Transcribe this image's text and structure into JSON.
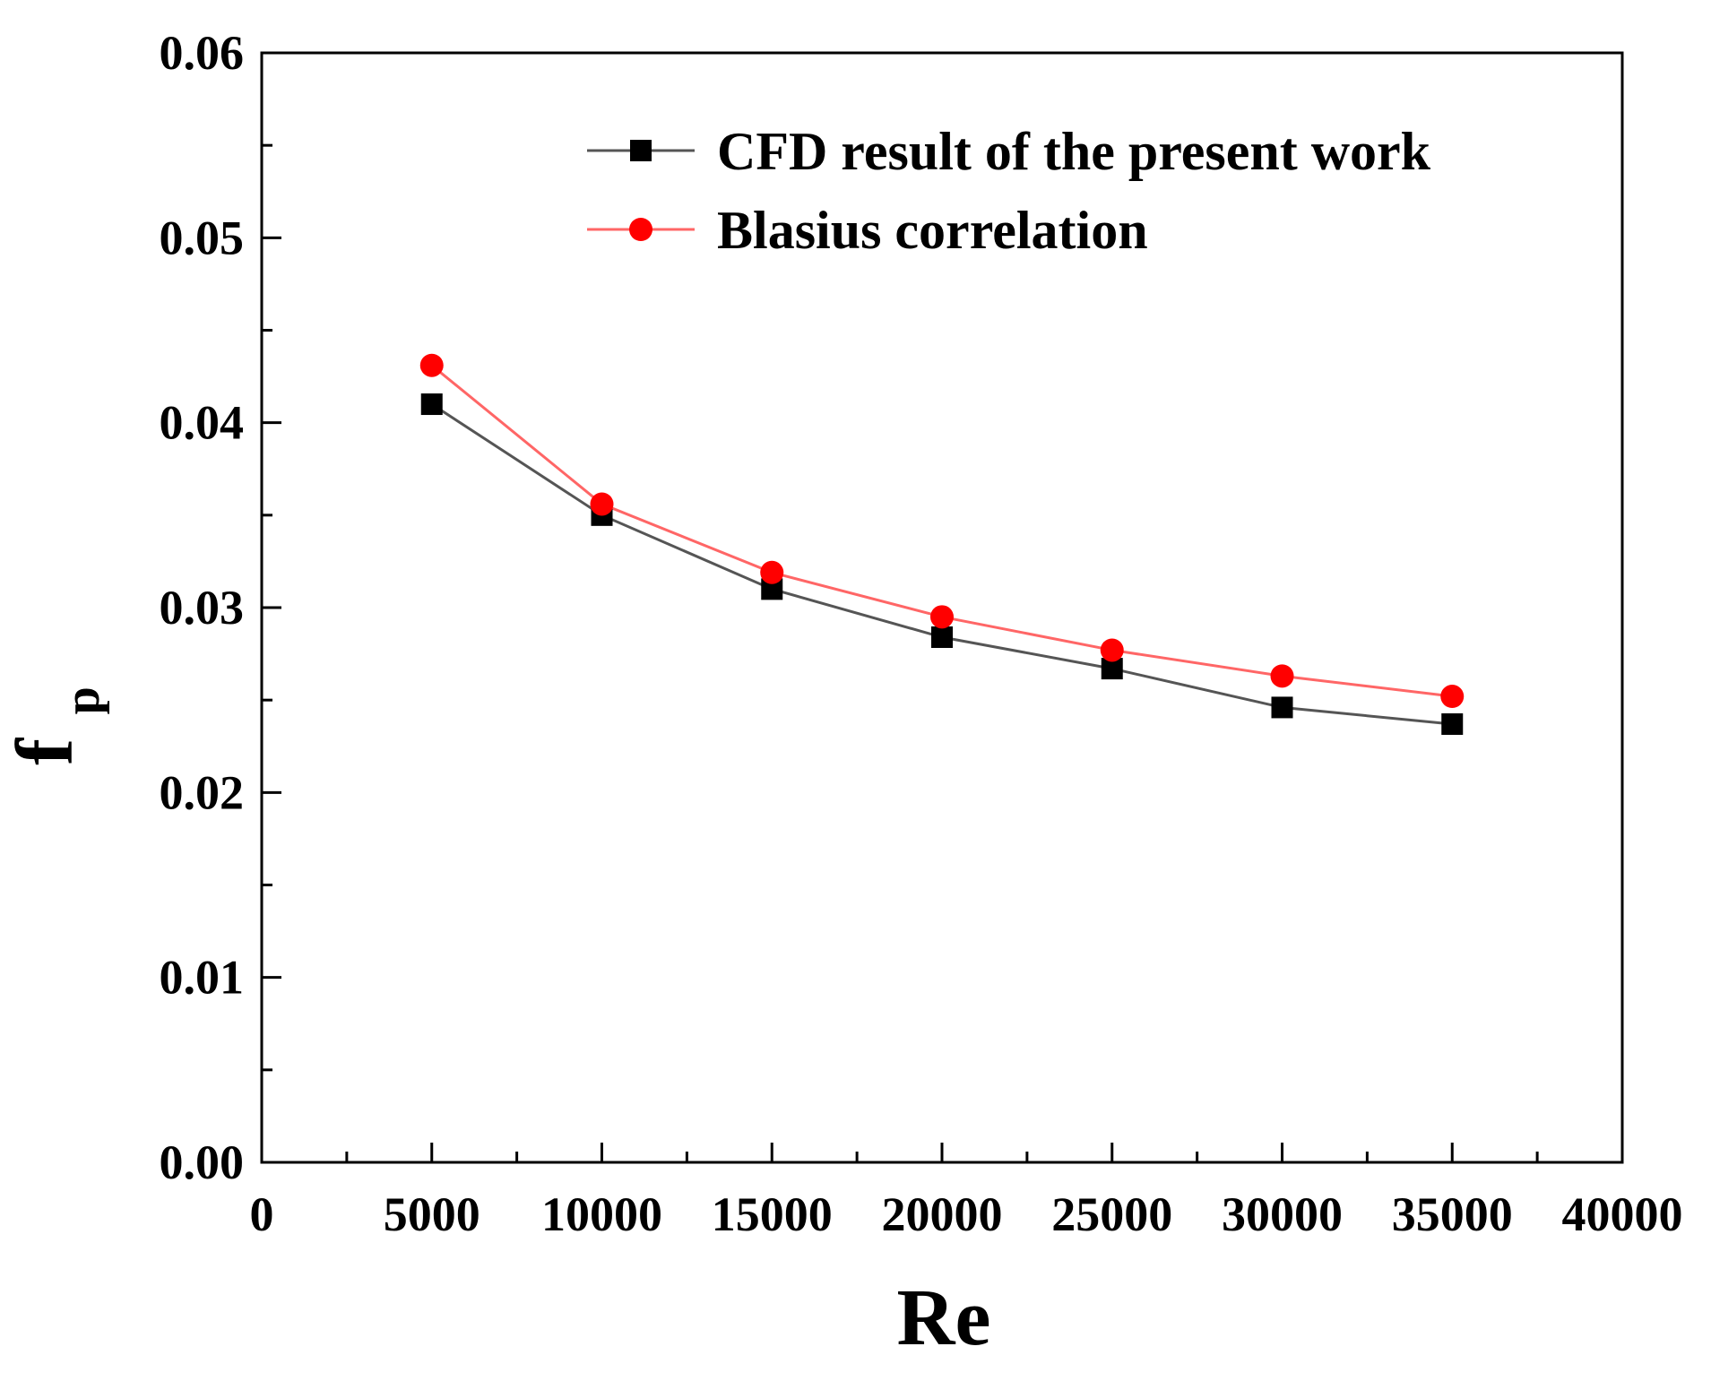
{
  "chart_data": {
    "type": "line",
    "title": "",
    "xlabel": "Re",
    "ylabel": "f",
    "ylabel_subscript": "p",
    "xlim": [
      0,
      40000
    ],
    "ylim": [
      0.0,
      0.06
    ],
    "x_ticks": [
      0,
      5000,
      10000,
      15000,
      20000,
      25000,
      30000,
      35000,
      40000
    ],
    "x_tick_labels": [
      "0",
      "5000",
      "10000",
      "15000",
      "20000",
      "25000",
      "30000",
      "35000",
      "40000"
    ],
    "y_ticks": [
      0.0,
      0.01,
      0.02,
      0.03,
      0.04,
      0.05,
      0.06
    ],
    "y_tick_labels": [
      "0.00",
      "0.01",
      "0.02",
      "0.03",
      "0.04",
      "0.05",
      "0.06"
    ],
    "grid": false,
    "legend_position": "top-right",
    "x": [
      5000,
      10000,
      15000,
      20000,
      25000,
      30000,
      35000
    ],
    "series": [
      {
        "name": "CFD result of the present work",
        "marker": "square",
        "color": "#000000",
        "line_color": "#555555",
        "values": [
          0.041,
          0.035,
          0.031,
          0.0284,
          0.0267,
          0.0246,
          0.0237
        ]
      },
      {
        "name": "Blasius correlation",
        "marker": "circle",
        "color": "#ff0000",
        "line_color": "#ff6666",
        "values": [
          0.0431,
          0.0356,
          0.0319,
          0.0295,
          0.0277,
          0.0263,
          0.0252
        ]
      }
    ]
  }
}
